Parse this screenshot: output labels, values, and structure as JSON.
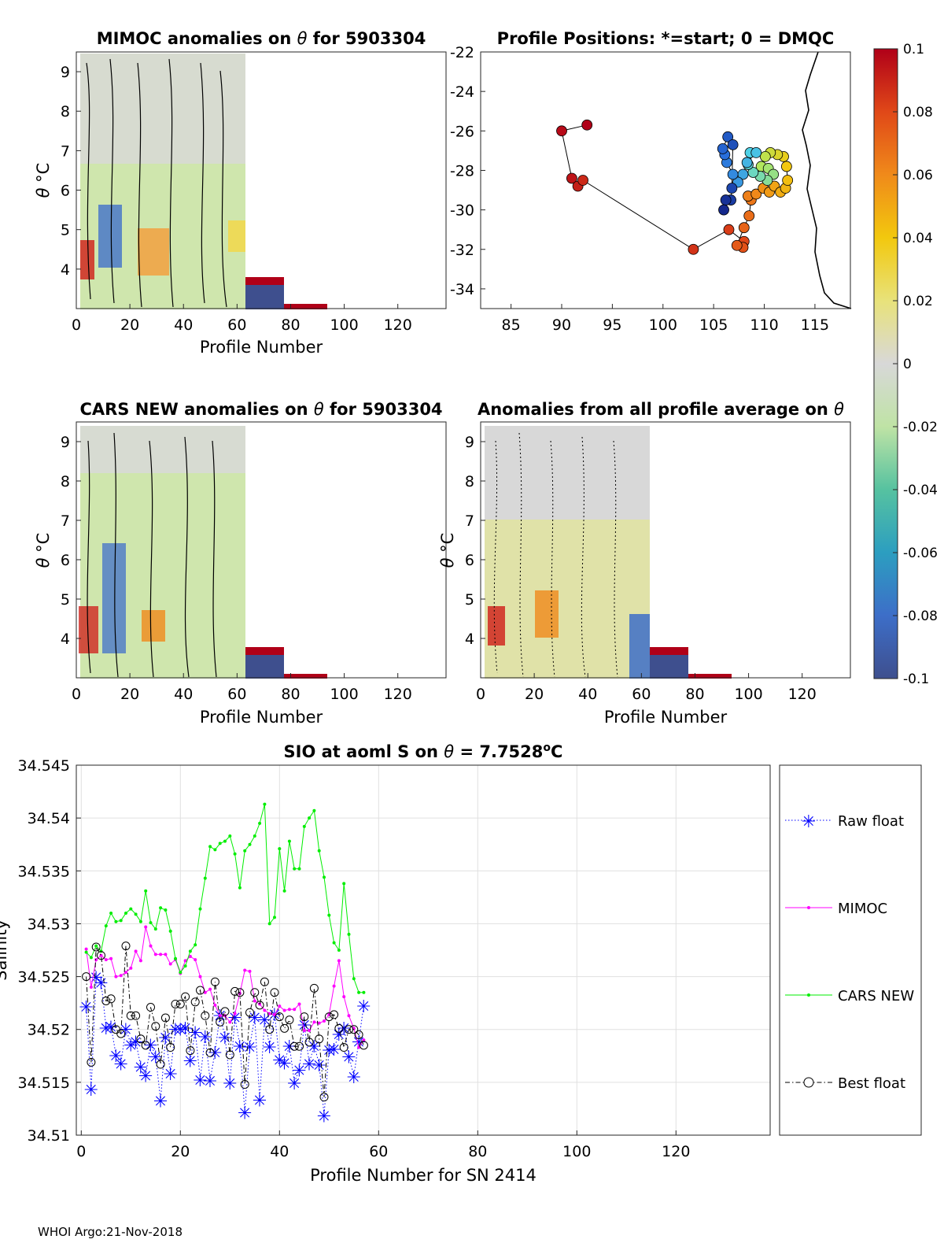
{
  "footer": "WHOI Argo:21-Nov-2018",
  "colorbar": {
    "ticks": [
      "0.1",
      "0.08",
      "0.06",
      "0.04",
      "0.02",
      "0",
      "-0.02",
      "-0.04",
      "-0.06",
      "-0.08",
      "-0.1"
    ],
    "range": [
      -0.1,
      0.1
    ]
  },
  "chart_data": [
    {
      "type": "heatmap",
      "title_pre": "MIMOC anomalies on ",
      "title_post": "  for 5903304",
      "xlabel": "Profile Number",
      "ylabel_sym": "θ",
      "ylabel_unit": "°C",
      "xlim": [
        0,
        138
      ],
      "ylim": [
        3,
        9.5
      ],
      "xticks": [
        0,
        20,
        40,
        60,
        80,
        100,
        120
      ],
      "yticks": [
        4,
        5,
        6,
        7,
        8,
        9
      ]
    },
    {
      "type": "scatter",
      "title": "Profile Positions: *=start; 0 = DMQC",
      "xlabel": "",
      "ylabel": "",
      "xlim": [
        82,
        118.5
      ],
      "ylim": [
        -35,
        -22
      ],
      "xticks": [
        85,
        90,
        95,
        100,
        105,
        110,
        115
      ],
      "yticks": [
        -22,
        -24,
        -26,
        -28,
        -30,
        -32,
        -34
      ],
      "track": [
        [
          92.5,
          -25.7
        ],
        [
          90,
          -26
        ],
        [
          91,
          -28.4
        ],
        [
          91.6,
          -28.8
        ],
        [
          92.1,
          -28.5
        ],
        [
          103,
          -32
        ],
        [
          106.5,
          -31
        ],
        [
          108,
          -31.6
        ],
        [
          107.9,
          -31.9
        ],
        [
          107.3,
          -31.8
        ],
        [
          108,
          -30.9
        ],
        [
          108.5,
          -30.3
        ],
        [
          108.7,
          -29.5
        ],
        [
          108.4,
          -29.3
        ],
        [
          109.2,
          -29.2
        ],
        [
          109.9,
          -28.9
        ],
        [
          110.5,
          -29.1
        ],
        [
          111,
          -28.8
        ],
        [
          111.6,
          -29.1
        ],
        [
          112.1,
          -28.9
        ],
        [
          112.3,
          -28.5
        ],
        [
          112.2,
          -27.8
        ],
        [
          111.9,
          -27.3
        ],
        [
          111.3,
          -27.2
        ],
        [
          110.6,
          -27.1
        ],
        [
          110.1,
          -27.3
        ],
        [
          109.7,
          -27.8
        ],
        [
          110.4,
          -27.9
        ],
        [
          110.9,
          -28.2
        ],
        [
          110.3,
          -28.5
        ],
        [
          109.6,
          -28.3
        ],
        [
          108.9,
          -28.1
        ],
        [
          108.4,
          -27.7
        ],
        [
          108.6,
          -27.1
        ],
        [
          109.2,
          -27.1
        ],
        [
          108.3,
          -27.6
        ],
        [
          107.9,
          -28.2
        ],
        [
          107.4,
          -28.6
        ],
        [
          106.9,
          -28.2
        ],
        [
          106.3,
          -27.6
        ],
        [
          106.1,
          -27.2
        ],
        [
          105.9,
          -26.9
        ],
        [
          106.4,
          -26.3
        ],
        [
          106.9,
          -26.7
        ],
        [
          106.8,
          -28.9
        ],
        [
          106.7,
          -29.5
        ],
        [
          106.2,
          -29.5
        ],
        [
          106,
          -30
        ]
      ]
    },
    {
      "type": "heatmap",
      "title_pre": "CARS NEW anomalies on ",
      "title_post": " for 5903304",
      "xlabel": "Profile Number",
      "ylabel_sym": "θ",
      "ylabel_unit": "°C",
      "xlim": [
        0,
        138
      ],
      "ylim": [
        3,
        9.5
      ],
      "xticks": [
        0,
        20,
        40,
        60,
        80,
        100,
        120
      ],
      "yticks": [
        4,
        5,
        6,
        7,
        8,
        9
      ]
    },
    {
      "type": "heatmap",
      "title_pre": "Anomalies from all profile average on ",
      "title_post": "",
      "xlabel": "Profile Number",
      "ylabel_sym": "θ",
      "ylabel_unit": "°C",
      "xlim": [
        0,
        138
      ],
      "ylim": [
        3,
        9.5
      ],
      "xticks": [
        0,
        20,
        40,
        60,
        80,
        100,
        120
      ],
      "yticks": [
        4,
        5,
        6,
        7,
        8,
        9
      ]
    },
    {
      "type": "line",
      "title_pre": "SIO at aoml S on ",
      "title_mid": " = 7.7528",
      "title_deg": "o",
      "title_post": "C",
      "xlabel": "Profile Number for SN 2414",
      "ylabel": "Salinity",
      "xlim": [
        -1,
        139
      ],
      "ylim": [
        34.51,
        34.545
      ],
      "xticks": [
        0,
        20,
        40,
        60,
        80,
        100,
        120
      ],
      "yticks": [
        34.51,
        34.515,
        34.52,
        34.525,
        34.53,
        34.535,
        34.54,
        34.545
      ],
      "x": [
        1,
        2,
        3,
        4,
        5,
        6,
        7,
        8,
        9,
        10,
        11,
        12,
        13,
        14,
        15,
        16,
        17,
        18,
        19,
        20,
        21,
        22,
        23,
        24,
        25,
        26,
        27,
        28,
        29,
        30,
        31,
        32,
        33,
        34,
        35,
        36,
        37,
        38,
        39,
        40,
        41,
        42,
        43,
        44,
        45,
        46,
        47,
        48,
        49,
        50,
        51,
        52,
        53,
        54,
        55,
        56,
        57
      ],
      "series": [
        {
          "name": "Raw float",
          "color": "#0000ff",
          "values": [
            34.5222,
            34.5144,
            34.525,
            34.5245,
            34.5202,
            34.5203,
            34.5176,
            34.5168,
            34.5201,
            34.5186,
            34.5189,
            34.5165,
            34.5157,
            34.5186,
            34.5175,
            34.5133,
            34.5193,
            34.5159,
            34.5201,
            34.5201,
            34.5202,
            34.5171,
            34.5198,
            34.5153,
            34.5194,
            34.5152,
            34.5179,
            34.5214,
            34.5193,
            34.515,
            34.5212,
            34.5185,
            34.5122,
            34.5184,
            34.5212,
            34.5134,
            34.521,
            34.5184,
            34.5215,
            34.5172,
            34.5169,
            34.5185,
            34.515,
            34.5162,
            34.5205,
            34.5168,
            34.5185,
            34.5167,
            34.5119,
            34.5181,
            34.5182,
            34.5196,
            34.5202,
            34.5175,
            34.5156,
            34.5189,
            34.5223
          ]
        },
        {
          "name": "MIMOC",
          "color": "#ff00ff",
          "values": [
            34.5276,
            34.524,
            34.5266,
            34.527,
            34.5266,
            34.5267,
            34.525,
            34.5251,
            34.5254,
            34.5258,
            34.5274,
            34.5265,
            34.5297,
            34.5279,
            34.5271,
            34.5271,
            34.5271,
            34.5262,
            34.5266,
            34.5253,
            34.5265,
            34.5269,
            34.5266,
            34.525,
            34.5235,
            34.5238,
            34.5223,
            34.5213,
            34.5213,
            34.5207,
            34.5215,
            34.5234,
            34.5256,
            34.5255,
            34.5227,
            34.5224,
            34.5218,
            34.5215,
            34.5214,
            34.5222,
            34.5218,
            34.5219,
            34.5219,
            34.5224,
            34.5199,
            34.5199,
            34.5207,
            34.5206,
            34.5208,
            34.5214,
            34.5241,
            34.5265,
            34.5231,
            34.5213,
            34.5201,
            34.5183,
            34.519
          ]
        },
        {
          "name": "CARS NEW",
          "color": "#00ee00",
          "values": [
            34.5273,
            34.5268,
            34.5279,
            34.5274,
            34.5298,
            34.531,
            34.5302,
            34.5303,
            34.531,
            34.5314,
            34.5309,
            34.5302,
            34.5331,
            34.5301,
            34.5295,
            34.5315,
            34.5313,
            34.5293,
            34.5267,
            34.5254,
            34.526,
            34.5274,
            34.528,
            34.5314,
            34.5343,
            34.5373,
            34.537,
            34.5376,
            34.5378,
            34.5383,
            34.5366,
            34.5334,
            34.5369,
            34.5375,
            34.5383,
            34.5395,
            34.5413,
            34.53,
            34.5306,
            34.5371,
            34.5331,
            34.5378,
            34.5352,
            34.5352,
            34.5392,
            34.54,
            34.5407,
            34.5369,
            34.5344,
            34.5308,
            34.5282,
            34.5275,
            34.5338,
            34.529,
            34.5248,
            34.5235,
            34.5235
          ]
        },
        {
          "name": "Best float",
          "color": "#000000",
          "values": [
            34.525,
            34.5169,
            34.5278,
            34.527,
            34.5227,
            34.5229,
            34.52,
            34.5196,
            34.5279,
            34.5213,
            34.5213,
            34.5191,
            34.5185,
            34.5221,
            34.5203,
            34.5167,
            34.5211,
            34.5183,
            34.5224,
            34.5224,
            34.5231,
            34.518,
            34.5226,
            34.5237,
            34.5213,
            34.5178,
            34.5245,
            34.5207,
            34.5217,
            34.5176,
            34.5236,
            34.5235,
            34.5148,
            34.5216,
            34.5235,
            34.5223,
            34.5245,
            34.52,
            34.5235,
            34.5212,
            34.5201,
            34.5209,
            34.5184,
            34.5184,
            34.5212,
            34.5188,
            34.5239,
            34.5191,
            34.5136,
            34.5212,
            34.5214,
            34.5201,
            34.5183,
            34.52,
            34.52,
            34.5195,
            34.5185
          ]
        }
      ]
    }
  ]
}
